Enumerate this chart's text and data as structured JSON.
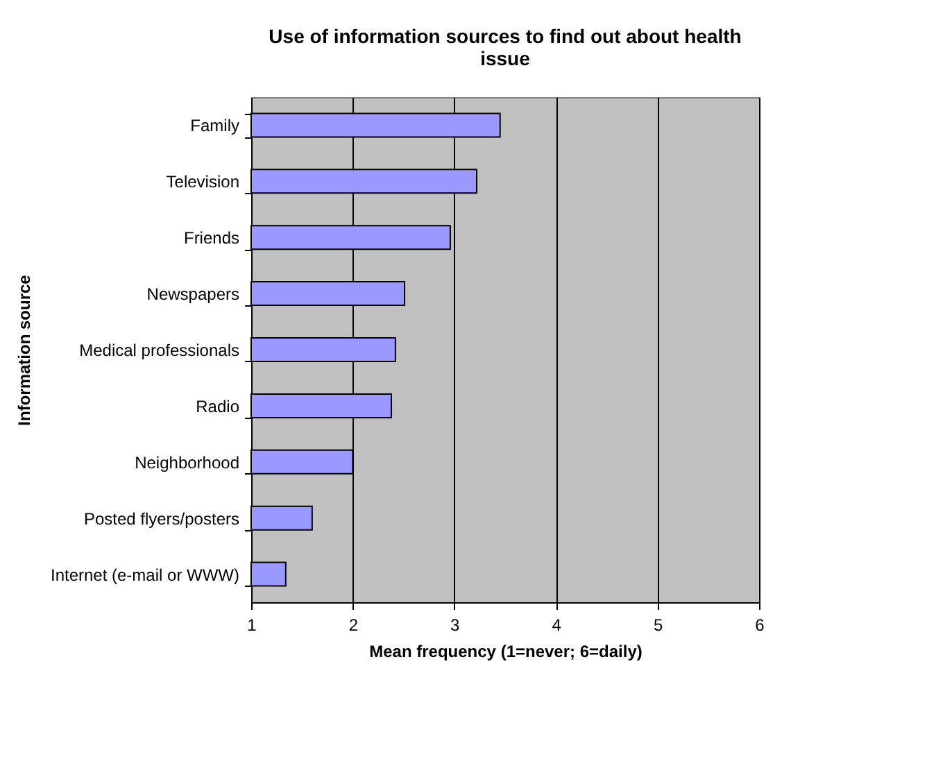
{
  "chart_data": {
    "type": "bar",
    "orientation": "horizontal",
    "title": "Use of information sources to find out about health issue",
    "xlabel": "Mean frequency (1=never; 6=daily)",
    "ylabel": "Information source",
    "categories": [
      "Family",
      "Television",
      "Friends",
      "Newspapers",
      "Medical professionals",
      "Radio",
      "Neighborhood",
      "Posted flyers/posters",
      "Internet (e-mail or WWW)"
    ],
    "values": [
      3.45,
      3.22,
      2.96,
      2.51,
      2.42,
      2.38,
      2.0,
      1.6,
      1.34
    ],
    "color": "#9999ff",
    "xlim": [
      1,
      6
    ],
    "xticks": [
      1,
      2,
      3,
      4,
      5,
      6
    ],
    "grid": "x"
  }
}
